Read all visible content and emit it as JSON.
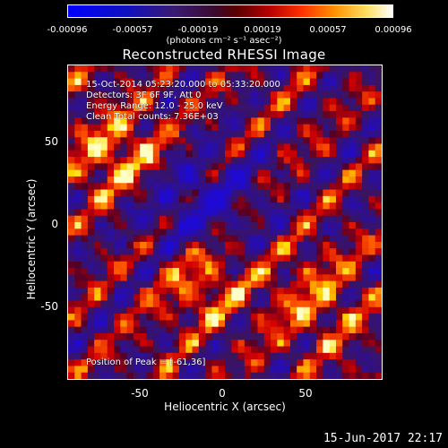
{
  "colorbar": {
    "tick_labels": [
      "-0.00096",
      "-0.00057",
      "-0.00019",
      "0.00019",
      "0.00057",
      "0.00096"
    ],
    "units": "(photons cm⁻² s⁻¹ asec⁻²)"
  },
  "plot_title": "Reconstructed RHESSI Image",
  "info_lines": [
    "15-Oct-2014 05:23:20.000 to 05:33:20.000",
    "Detectors: 3F 6F 9F, Att 0",
    "Energy Range: 12.0 - 25.0 keV",
    "Clean     Total counts: 7.36E+03"
  ],
  "peak_text": "Position of Peak = [-61,36]",
  "timestamp": "15-Jun-2017 22:17",
  "chart_data": {
    "type": "heatmap",
    "title": "Reconstructed RHESSI Image",
    "xlabel": "Heliocentric X (arcsec)",
    "ylabel": "Heliocentric Y (arcsec)",
    "xlim": [
      -96,
      96
    ],
    "ylim": [
      -96,
      96
    ],
    "xticks": [
      -50,
      0,
      50
    ],
    "yticks": [
      50,
      0,
      -50
    ],
    "zlim": [
      -0.00096,
      0.00096
    ],
    "colormap": "RHESSI red-temperature with blue negatives",
    "peak": [
      -61,
      36
    ]
  }
}
